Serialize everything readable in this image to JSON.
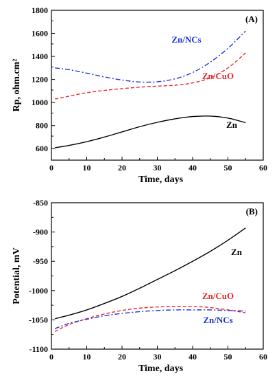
{
  "chart_data": [
    {
      "type": "line",
      "panel_label": "(A)",
      "xlabel": "Time, days",
      "ylabel": "Rp, ohm.cm²",
      "xlim": [
        0,
        60
      ],
      "ylim": [
        500,
        1800
      ],
      "xticks": [
        "0",
        "10",
        "20",
        "30",
        "40",
        "50",
        "60"
      ],
      "yticks": [
        "600",
        "800",
        "1000",
        "1200",
        "1400",
        "1600",
        "1800"
      ],
      "grid": false,
      "series": [
        {
          "name": "Zn",
          "color": "#000000",
          "dash": "solid",
          "label_position": "right-below",
          "x": [
            1,
            5,
            10,
            15,
            20,
            25,
            30,
            35,
            40,
            45,
            50,
            55
          ],
          "y": [
            608,
            628,
            660,
            700,
            745,
            790,
            828,
            858,
            878,
            882,
            865,
            825
          ]
        },
        {
          "name": "Zn/CuO",
          "color": "#e8262b",
          "dash": "dashed",
          "label_position": "right",
          "x": [
            1,
            5,
            10,
            15,
            20,
            25,
            30,
            35,
            40,
            45,
            50,
            55
          ],
          "y": [
            1030,
            1055,
            1085,
            1105,
            1120,
            1133,
            1142,
            1150,
            1170,
            1215,
            1300,
            1430
          ]
        },
        {
          "name": "Zn/NCs",
          "color": "#1f33d6",
          "dash": "dashdot",
          "label_position": "upper-middle",
          "x": [
            1,
            5,
            10,
            15,
            20,
            25,
            30,
            35,
            40,
            45,
            50,
            55
          ],
          "y": [
            1300,
            1285,
            1255,
            1222,
            1195,
            1178,
            1180,
            1205,
            1260,
            1350,
            1470,
            1620
          ]
        }
      ]
    },
    {
      "type": "line",
      "panel_label": "(B)",
      "xlabel": "Time, days",
      "ylabel": "Potential, mV",
      "xlim": [
        0,
        60
      ],
      "ylim": [
        -1100,
        -850
      ],
      "xticks": [
        "0",
        "10",
        "20",
        "30",
        "40",
        "50",
        "60"
      ],
      "yticks": [
        "-1100",
        "-1050",
        "-1000",
        "-950",
        "-900",
        "-850"
      ],
      "grid": false,
      "series": [
        {
          "name": "Zn",
          "color": "#000000",
          "dash": "solid",
          "label_position": "right",
          "x": [
            1,
            5,
            10,
            15,
            20,
            25,
            30,
            35,
            40,
            45,
            50,
            55
          ],
          "y": [
            -1048,
            -1042,
            -1033,
            -1022,
            -1010,
            -996,
            -981,
            -966,
            -950,
            -933,
            -914,
            -893
          ]
        },
        {
          "name": "Zn/CuO",
          "color": "#e8262b",
          "dash": "dashed",
          "label_position": "right-above",
          "x": [
            1,
            5,
            10,
            15,
            20,
            25,
            30,
            35,
            40,
            45,
            50,
            55
          ],
          "y": [
            -1070,
            -1058,
            -1048,
            -1040,
            -1034,
            -1030,
            -1028,
            -1027,
            -1027,
            -1029,
            -1033,
            -1038
          ]
        },
        {
          "name": "Zn/NCs",
          "color": "#1f33d6",
          "dash": "dashdot",
          "label_position": "right-below",
          "x": [
            1,
            5,
            10,
            15,
            20,
            25,
            30,
            35,
            40,
            45,
            50,
            55
          ],
          "y": [
            -1065,
            -1056,
            -1049,
            -1043,
            -1039,
            -1036,
            -1034,
            -1033,
            -1033,
            -1033,
            -1034,
            -1035
          ]
        }
      ]
    }
  ]
}
